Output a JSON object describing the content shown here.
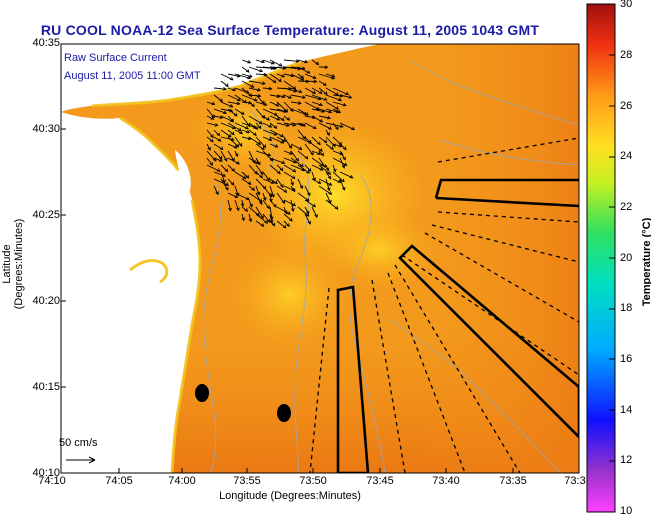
{
  "title": "RU COOL  NOAA-12  Sea Surface Temperature:  August 11, 2005 1043 GMT",
  "legend": {
    "line1": "Raw Surface Current",
    "line2": "August 11, 2005 11:00 GMT"
  },
  "scale_label": "50 cm/s",
  "axes": {
    "xlabel": "Longitude (Degrees:Minutes)",
    "ylabel": "Latitude (Degrees:Minutes)",
    "xticks": [
      "74:10",
      "74:05",
      "74:00",
      "73:55",
      "73:50",
      "73:45",
      "73:40",
      "73:35",
      "73:3"
    ],
    "yticks": [
      "40:35",
      "40:30",
      "40:25",
      "40:20",
      "40:15",
      "40:10"
    ]
  },
  "colorbar": {
    "title": "Temperature (°C)",
    "ticks": [
      "30",
      "28",
      "26",
      "24",
      "22",
      "20",
      "18",
      "16",
      "14",
      "12",
      "10"
    ],
    "min": 10,
    "max": 30
  },
  "colors": {
    "title_text": "#1a1aa6",
    "ocean_base": "#f39a1c",
    "land": "#ffffff"
  }
}
